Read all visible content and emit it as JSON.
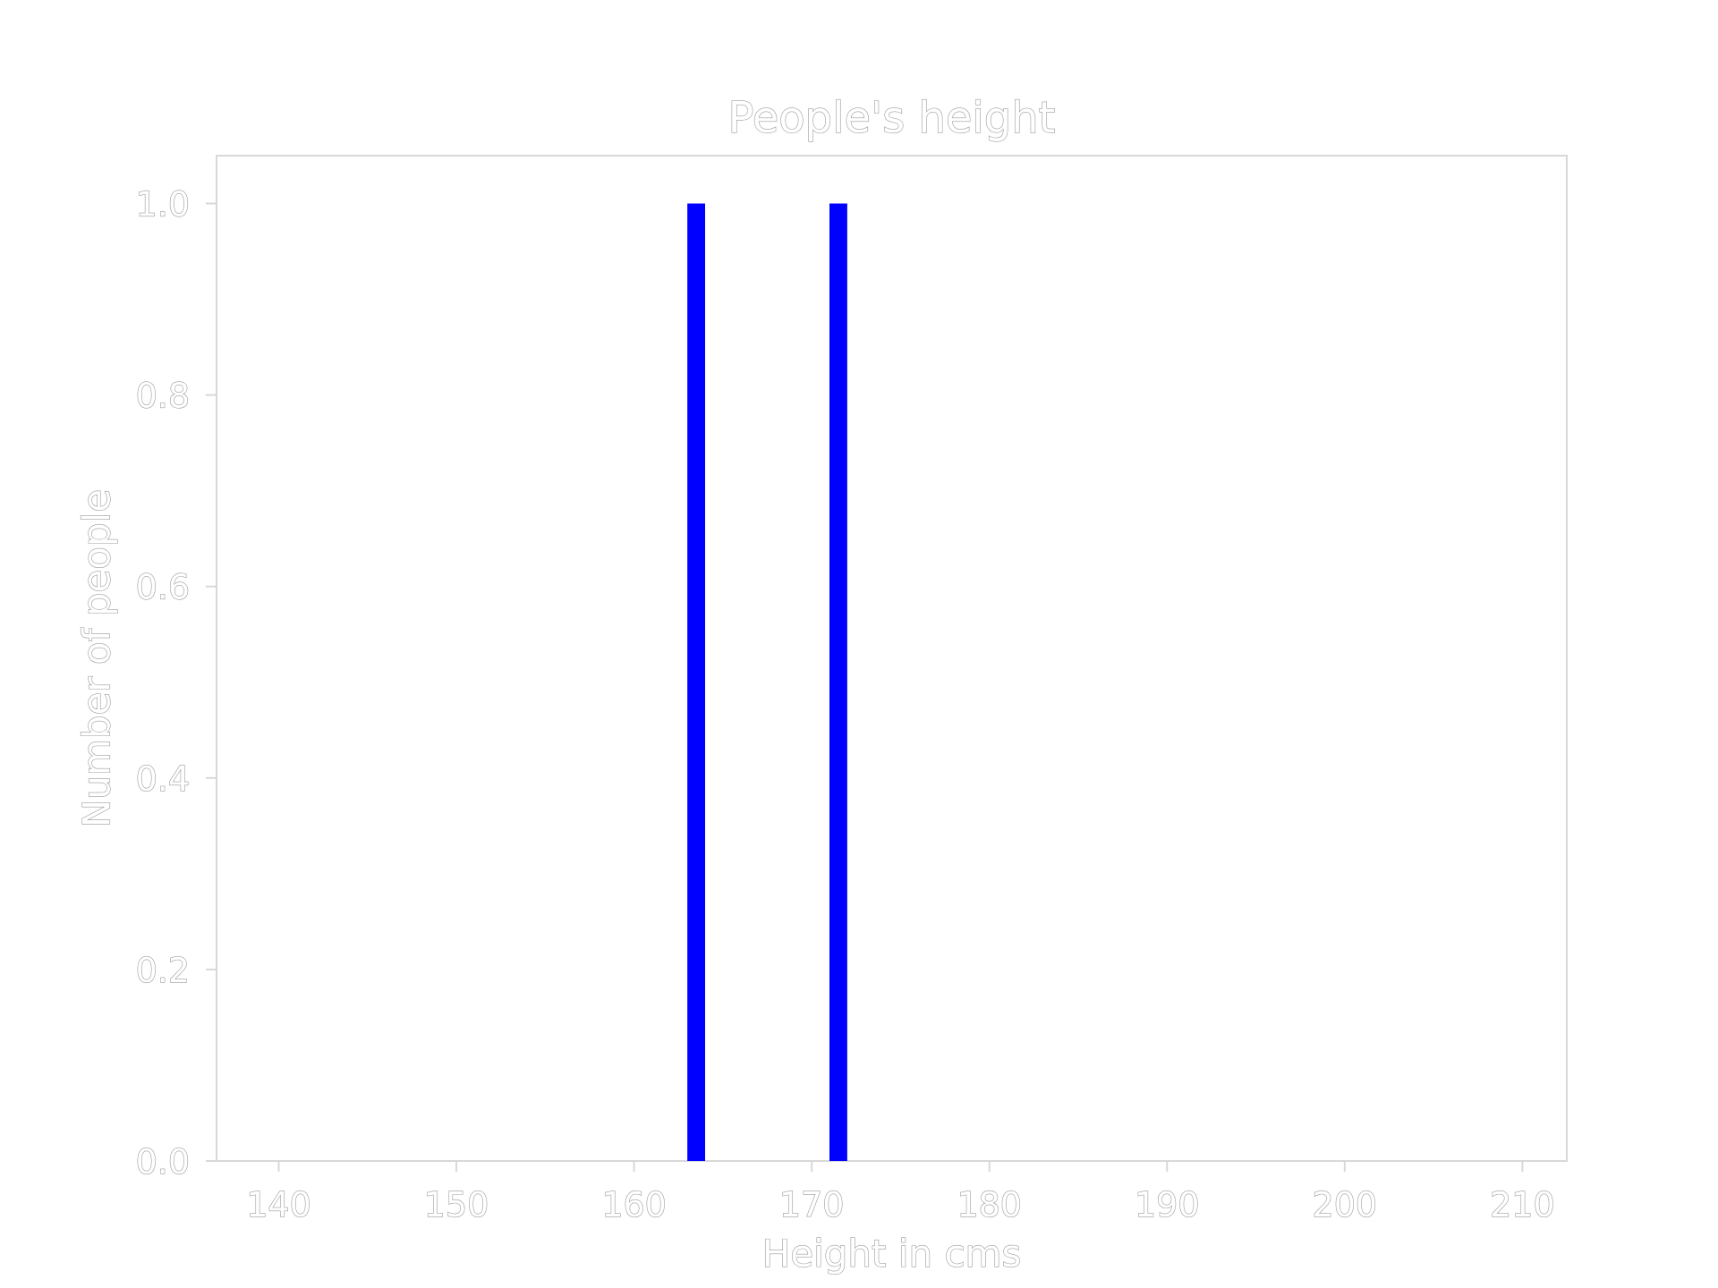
{
  "chart_data": {
    "type": "bar",
    "title": "People's height",
    "xlabel": "Height in cms",
    "ylabel": "Number of people",
    "xlim": [
      136.5,
      212.5
    ],
    "ylim": [
      0,
      1.05
    ],
    "xticks": [
      140,
      150,
      160,
      170,
      180,
      190,
      200,
      210
    ],
    "yticks": [
      0.0,
      0.2,
      0.4,
      0.6,
      0.8,
      1.0
    ],
    "ytick_labels": [
      "0.0",
      "0.2",
      "0.4",
      "0.6",
      "0.8",
      "1.0"
    ],
    "bars": [
      {
        "x_start": 163.0,
        "x_end": 164.0,
        "value": 1.0
      },
      {
        "x_start": 171.0,
        "x_end": 172.0,
        "value": 1.0
      }
    ],
    "grid": false,
    "colors": {
      "bar": "#0000ff",
      "axes": "#d8d8d8",
      "text_stroke": "#9a9a9a"
    }
  }
}
